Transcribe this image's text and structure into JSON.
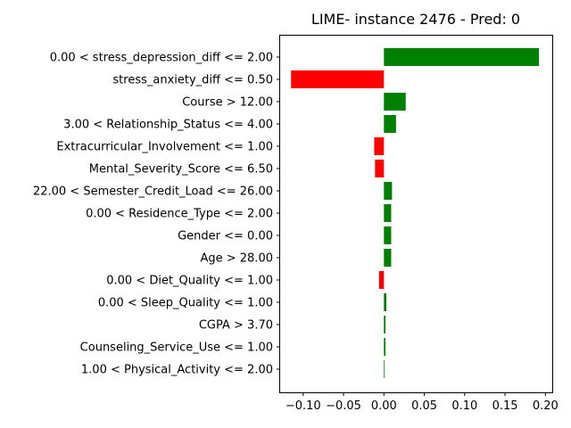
{
  "chart_data": {
    "type": "bar",
    "orientation": "horizontal",
    "title": "LIME- instance 2476 - Pred: 0",
    "xlabel": "",
    "ylabel": "",
    "xlim": [
      -0.1285,
      0.2085
    ],
    "xticks": [
      -0.1,
      -0.05,
      0.0,
      0.05,
      0.1,
      0.15,
      0.2
    ],
    "xtick_labels": [
      "−0.10",
      "−0.05",
      "0.00",
      "0.05",
      "0.10",
      "0.15",
      "0.20"
    ],
    "grid": false,
    "legend": "none",
    "positive_color": "#008000",
    "negative_color": "#ff0000",
    "categories": [
      "0.00 < stress_depression_diff <= 2.00",
      "stress_anxiety_diff <= 0.50",
      "Course > 12.00",
      "3.00 < Relationship_Status <= 4.00",
      "Extracurricular_Involvement <= 1.00",
      "Mental_Severity_Score <= 6.50",
      "22.00 < Semester_Credit_Load <= 26.00",
      "0.00 < Residence_Type <= 2.00",
      "Gender <= 0.00",
      "Age > 28.00",
      "0.00 < Diet_Quality <= 1.00",
      "0.00 < Sleep_Quality <= 1.00",
      "CGPA > 3.70",
      "Counseling_Service_Use <= 1.00",
      "1.00 < Physical_Activity <= 2.00"
    ],
    "values": [
      0.192,
      -0.115,
      0.027,
      0.015,
      -0.012,
      -0.011,
      0.01,
      0.009,
      0.009,
      0.009,
      -0.006,
      0.003,
      0.002,
      0.002,
      0.0005
    ]
  }
}
